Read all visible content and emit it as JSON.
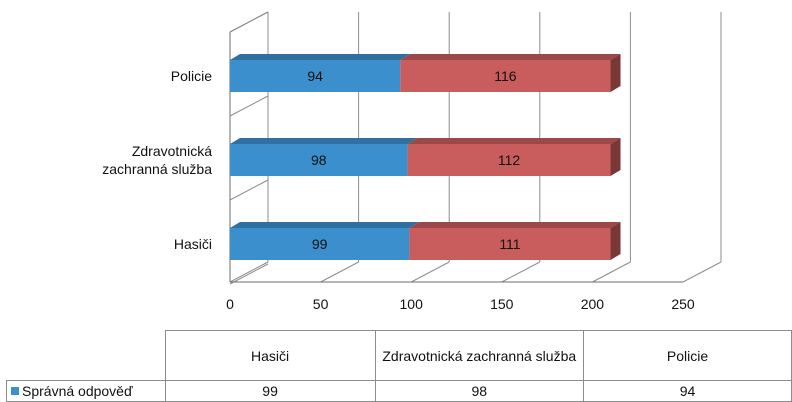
{
  "chart_data": {
    "type": "bar",
    "orientation": "horizontal",
    "stacked": true,
    "three_d": true,
    "categories": [
      "Policie",
      "Zdravotnická zachranná služba",
      "Hasiči"
    ],
    "category_lines": [
      [
        "Policie"
      ],
      [
        "Zdravotnická",
        "zachranná služba"
      ],
      [
        "Hasiči"
      ]
    ],
    "series": [
      {
        "name": "Správná odpověď",
        "values": [
          94,
          98,
          99
        ],
        "color": "#3b8fcc"
      },
      {
        "name": "",
        "values": [
          116,
          112,
          111
        ],
        "color": "#c95c5c"
      }
    ],
    "xlim": [
      0,
      250
    ],
    "xticks": [
      "0",
      "50",
      "100",
      "150",
      "200",
      "250"
    ],
    "title": "",
    "xlabel": "",
    "ylabel": "",
    "grid": true,
    "data_table": {
      "columns": [
        "Hasiči",
        "Zdravotnická zachranná služba",
        "Policie"
      ],
      "rows": [
        {
          "label": "Správná odpověď",
          "values": [
            "99",
            "98",
            "94"
          ]
        }
      ]
    }
  }
}
